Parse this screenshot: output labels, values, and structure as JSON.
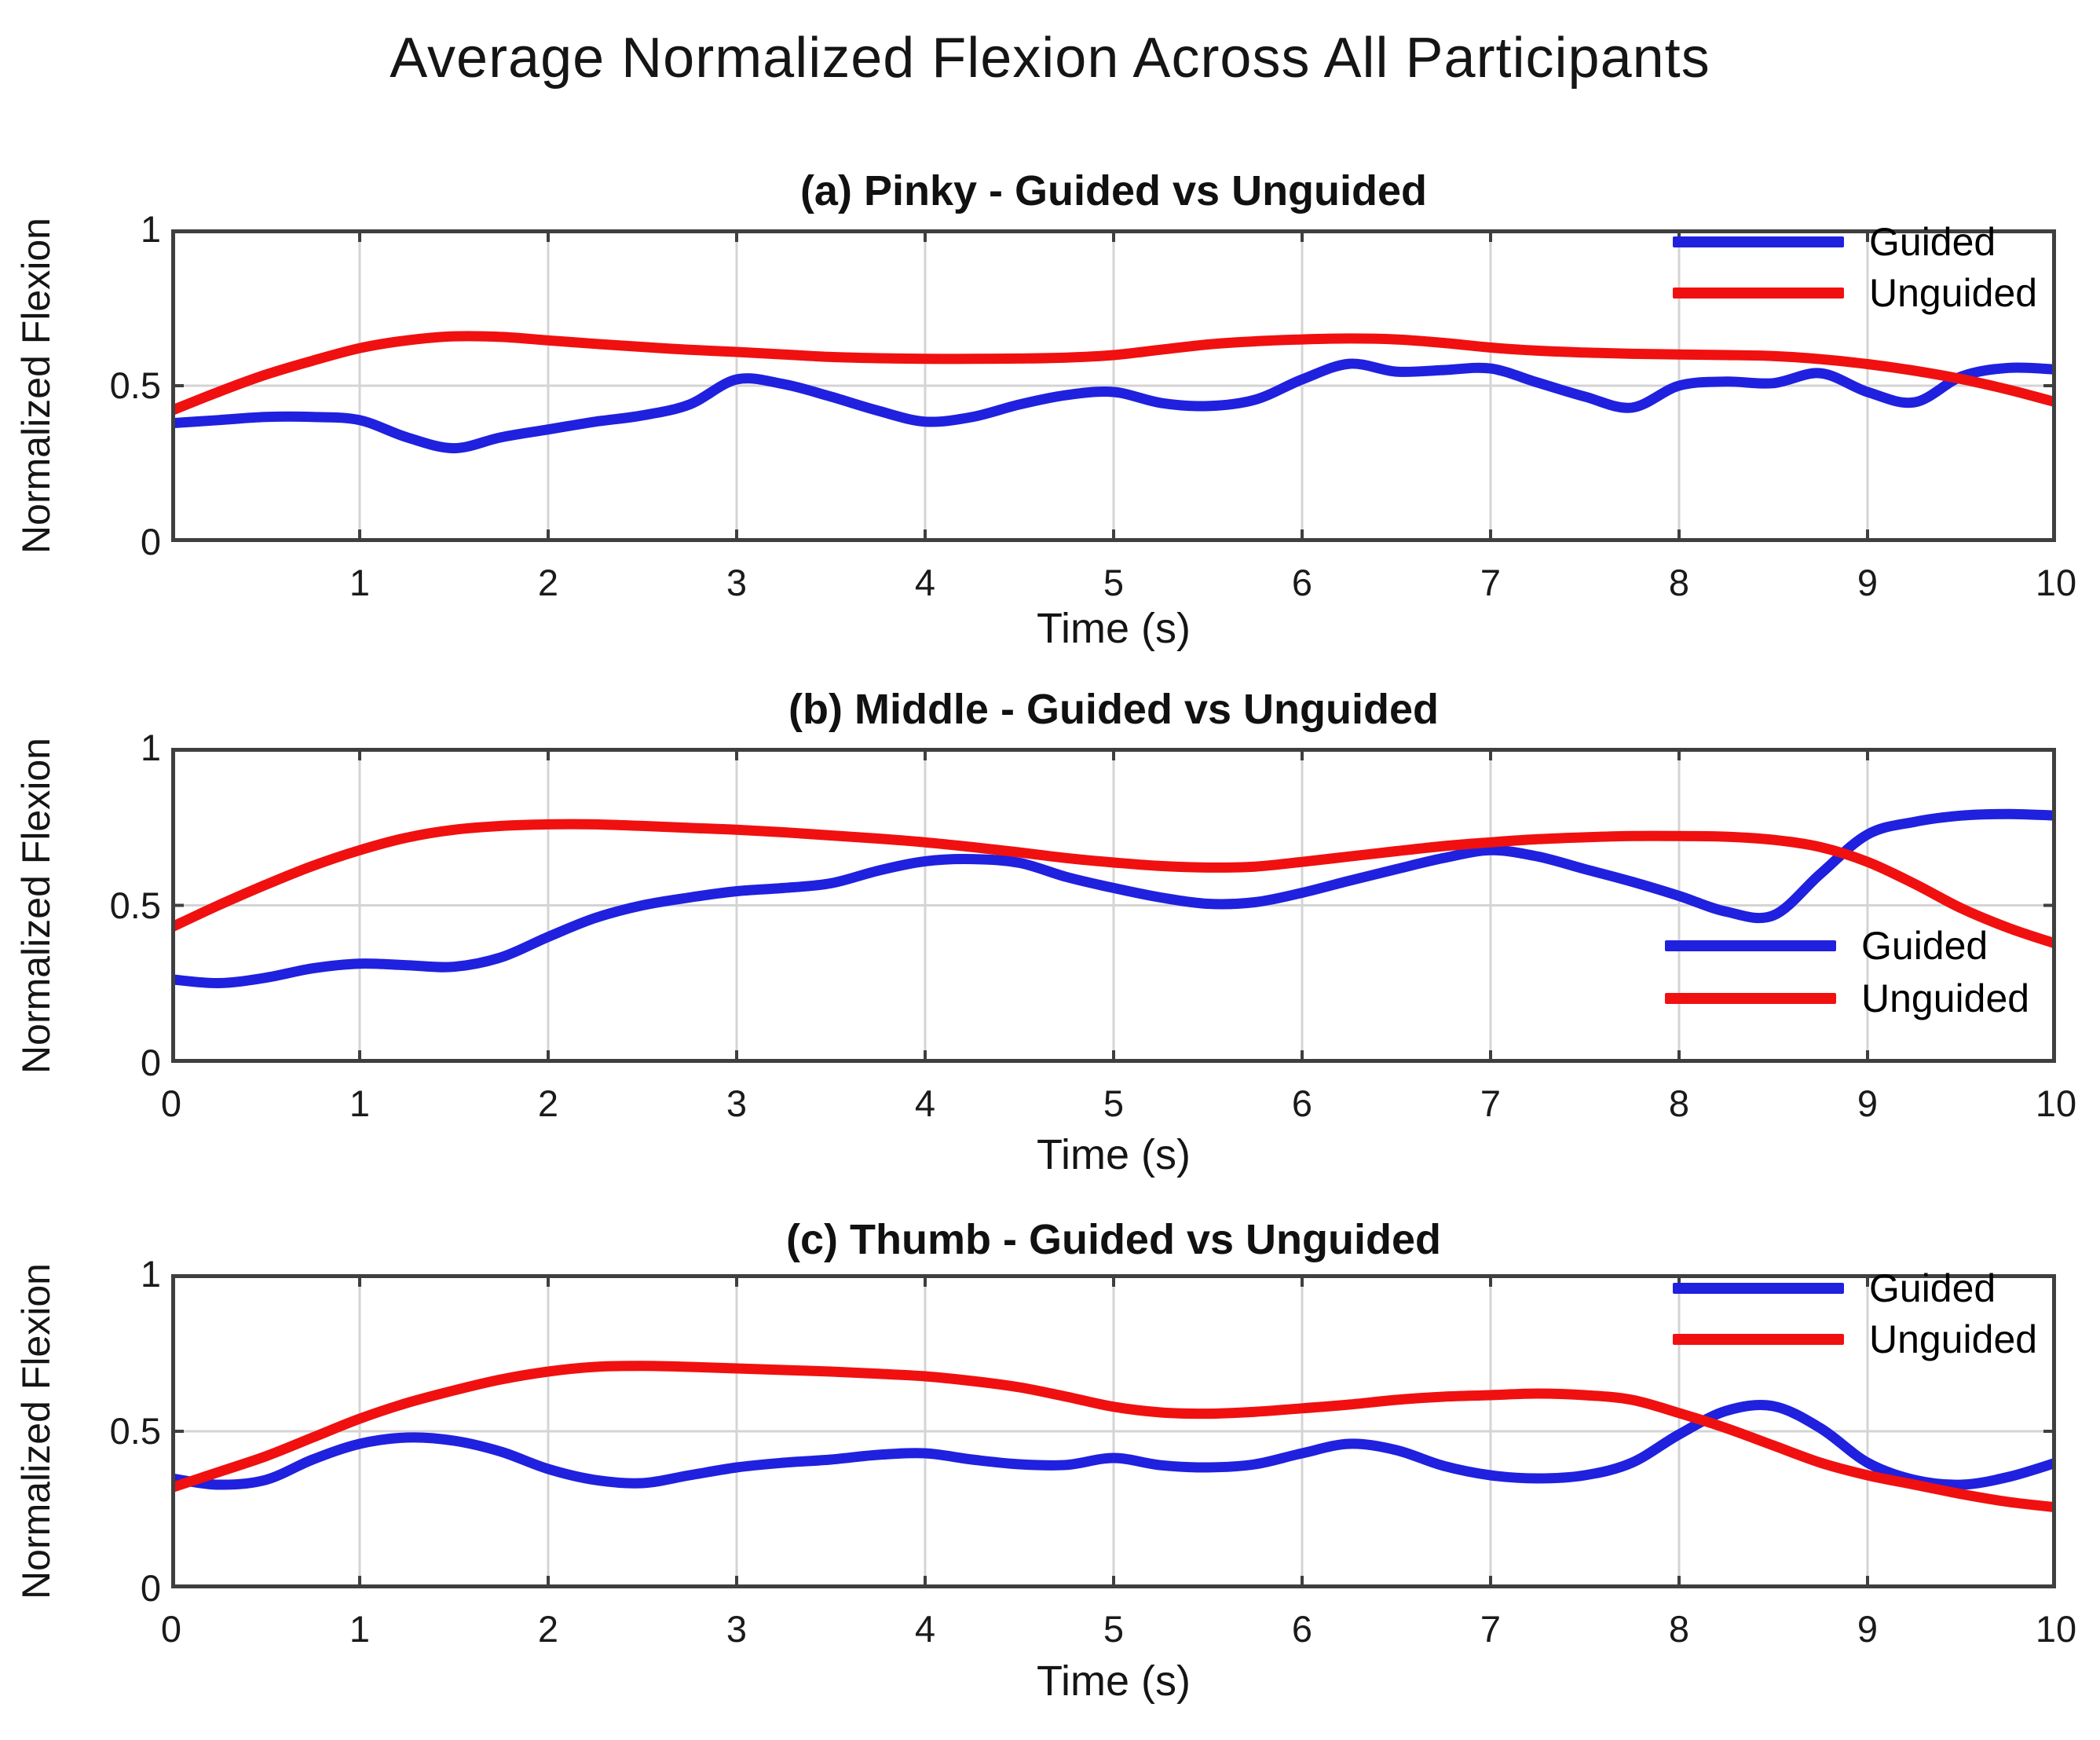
{
  "figure": {
    "title": "Average Normalized Flexion Across All Participants",
    "background": "#ffffff",
    "axis_color": "#3f3f3f",
    "grid_color": "#d4d4d4",
    "tick_text_color": "#1a1a1a"
  },
  "chart_data": [
    {
      "type": "line",
      "title": "(a) Pinky - Guided vs Unguided",
      "xlabel": "Time (s)",
      "ylabel": "Normalized Flexion",
      "xlim": [
        0,
        10
      ],
      "ylim": [
        0,
        1
      ],
      "grid": true,
      "legend_position": "northeast",
      "xtick_values": [
        1,
        2,
        3,
        4,
        5,
        6,
        7,
        8,
        9,
        10
      ],
      "xtick_labels": [
        "1",
        "2",
        "3",
        "4",
        "5",
        "6",
        "7",
        "8",
        "9",
        "10"
      ],
      "ytick_values": [
        0,
        0.5,
        1
      ],
      "ytick_labels": [
        "0",
        "0.5",
        "1"
      ],
      "x_start": 0,
      "x_step": 0.25,
      "series": [
        {
          "name": "Guided",
          "color": "#2020DF",
          "values": [
            0.38,
            0.39,
            0.4,
            0.4,
            0.39,
            0.335,
            0.3,
            0.335,
            0.36,
            0.385,
            0.405,
            0.44,
            0.52,
            0.505,
            0.465,
            0.42,
            0.385,
            0.4,
            0.44,
            0.47,
            0.48,
            0.445,
            0.435,
            0.455,
            0.52,
            0.57,
            0.545,
            0.55,
            0.555,
            0.51,
            0.465,
            0.43,
            0.5,
            0.513,
            0.508,
            0.54,
            0.48,
            0.447,
            0.53,
            0.557,
            0.552
          ]
        },
        {
          "name": "Unguided",
          "color": "#F01010",
          "values": [
            0.42,
            0.48,
            0.535,
            0.58,
            0.62,
            0.645,
            0.658,
            0.656,
            0.645,
            0.634,
            0.624,
            0.615,
            0.608,
            0.6,
            0.592,
            0.588,
            0.586,
            0.586,
            0.587,
            0.59,
            0.598,
            0.615,
            0.632,
            0.642,
            0.648,
            0.651,
            0.648,
            0.637,
            0.622,
            0.612,
            0.606,
            0.602,
            0.6,
            0.598,
            0.595,
            0.585,
            0.569,
            0.548,
            0.521,
            0.487,
            0.447
          ]
        }
      ]
    },
    {
      "type": "line",
      "title": "(b) Middle - Guided vs Unguided",
      "xlabel": "Time (s)",
      "ylabel": "Normalized Flexion",
      "xlim": [
        0,
        10
      ],
      "ylim": [
        0,
        1
      ],
      "grid": true,
      "legend_position": "southeast",
      "xtick_values": [
        0,
        1,
        2,
        3,
        4,
        5,
        6,
        7,
        8,
        9,
        10
      ],
      "xtick_labels": [
        "0",
        "1",
        "2",
        "3",
        "4",
        "5",
        "6",
        "7",
        "8",
        "9",
        "10"
      ],
      "ytick_values": [
        0,
        0.5,
        1
      ],
      "ytick_labels": [
        "0",
        "0.5",
        "1"
      ],
      "x_start": 0,
      "x_step": 0.25,
      "series": [
        {
          "name": "Guided",
          "color": "#2020DF",
          "values": [
            0.265,
            0.253,
            0.27,
            0.3,
            0.315,
            0.31,
            0.305,
            0.335,
            0.4,
            0.46,
            0.5,
            0.525,
            0.545,
            0.555,
            0.57,
            0.61,
            0.64,
            0.647,
            0.635,
            0.59,
            0.555,
            0.525,
            0.505,
            0.51,
            0.54,
            0.578,
            0.615,
            0.65,
            0.675,
            0.655,
            0.615,
            0.575,
            0.53,
            0.48,
            0.468,
            0.6,
            0.725,
            0.765,
            0.785,
            0.79,
            0.785
          ]
        },
        {
          "name": "Unguided",
          "color": "#F01010",
          "values": [
            0.43,
            0.5,
            0.565,
            0.625,
            0.675,
            0.715,
            0.74,
            0.752,
            0.757,
            0.757,
            0.752,
            0.746,
            0.74,
            0.732,
            0.722,
            0.712,
            0.7,
            0.685,
            0.668,
            0.65,
            0.636,
            0.625,
            0.62,
            0.623,
            0.638,
            0.655,
            0.672,
            0.688,
            0.7,
            0.71,
            0.716,
            0.72,
            0.72,
            0.718,
            0.708,
            0.685,
            0.638,
            0.568,
            0.49,
            0.428,
            0.378
          ]
        }
      ]
    },
    {
      "type": "line",
      "title": "(c) Thumb - Guided vs Unguided",
      "xlabel": "Time (s)",
      "ylabel": "Normalized Flexion",
      "xlim": [
        0,
        10
      ],
      "ylim": [
        0,
        1
      ],
      "grid": true,
      "legend_position": "northeast",
      "xtick_values": [
        0,
        1,
        2,
        3,
        4,
        5,
        6,
        7,
        8,
        9,
        10
      ],
      "xtick_labels": [
        "0",
        "1",
        "2",
        "3",
        "4",
        "5",
        "6",
        "7",
        "8",
        "9",
        "10"
      ],
      "ytick_values": [
        0,
        0.5,
        1
      ],
      "ytick_labels": [
        "0",
        "0.5",
        "1"
      ],
      "x_start": 0,
      "x_step": 0.25,
      "series": [
        {
          "name": "Guided",
          "color": "#2020DF",
          "values": [
            0.35,
            0.33,
            0.345,
            0.41,
            0.46,
            0.48,
            0.47,
            0.435,
            0.38,
            0.345,
            0.335,
            0.36,
            0.385,
            0.4,
            0.41,
            0.425,
            0.43,
            0.41,
            0.395,
            0.393,
            0.415,
            0.392,
            0.385,
            0.395,
            0.43,
            0.46,
            0.44,
            0.39,
            0.36,
            0.35,
            0.36,
            0.4,
            0.49,
            0.565,
            0.58,
            0.51,
            0.4,
            0.345,
            0.33,
            0.355,
            0.4
          ]
        },
        {
          "name": "Unguided",
          "color": "#F01010",
          "values": [
            0.32,
            0.37,
            0.42,
            0.48,
            0.54,
            0.59,
            0.63,
            0.665,
            0.69,
            0.705,
            0.708,
            0.705,
            0.7,
            0.695,
            0.69,
            0.683,
            0.675,
            0.66,
            0.64,
            0.61,
            0.578,
            0.56,
            0.556,
            0.562,
            0.573,
            0.585,
            0.6,
            0.61,
            0.615,
            0.62,
            0.615,
            0.6,
            0.558,
            0.51,
            0.455,
            0.4,
            0.36,
            0.33,
            0.3,
            0.275,
            0.258
          ]
        }
      ]
    }
  ]
}
